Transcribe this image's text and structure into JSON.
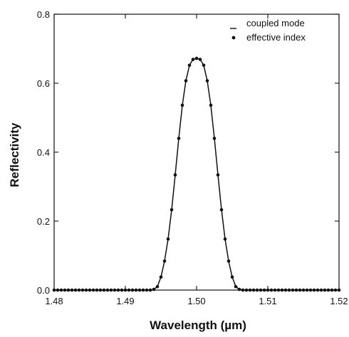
{
  "chart_data": {
    "type": "line",
    "xlabel": "Wavelength (µm)",
    "ylabel": "Reflectivity",
    "xlim": [
      1.48,
      1.52
    ],
    "ylim": [
      0.0,
      0.8
    ],
    "x_ticks": [
      1.48,
      1.49,
      1.5,
      1.51,
      1.52
    ],
    "x_tick_labels": [
      "1.48",
      "1.49",
      "1.50",
      "1.51",
      "1.52"
    ],
    "y_ticks": [
      0.0,
      0.2,
      0.4,
      0.6,
      0.8
    ],
    "y_tick_labels": [
      "0.0",
      "0.2",
      "0.4",
      "0.6",
      "0.8"
    ],
    "grid": false,
    "legend_position": "top-right",
    "series": [
      {
        "name": "coupled mode",
        "style": "line",
        "x": [
          1.48,
          1.4805,
          1.481,
          1.4815,
          1.482,
          1.4825,
          1.483,
          1.4835,
          1.484,
          1.4845,
          1.485,
          1.4855,
          1.486,
          1.4865,
          1.487,
          1.4875,
          1.488,
          1.4885,
          1.489,
          1.4895,
          1.49,
          1.4905,
          1.491,
          1.4915,
          1.492,
          1.4925,
          1.493,
          1.4935,
          1.494,
          1.4945,
          1.495,
          1.4955,
          1.496,
          1.4965,
          1.497,
          1.4975,
          1.498,
          1.4985,
          1.499,
          1.4995,
          1.5,
          1.5005,
          1.501,
          1.5015,
          1.502,
          1.5025,
          1.503,
          1.5035,
          1.504,
          1.5045,
          1.505,
          1.5055,
          1.506,
          1.5065,
          1.507,
          1.5075,
          1.508,
          1.5085,
          1.509,
          1.5095,
          1.51,
          1.5105,
          1.511,
          1.5115,
          1.512,
          1.5125,
          1.513,
          1.5135,
          1.514,
          1.5145,
          1.515,
          1.5155,
          1.516,
          1.5165,
          1.517,
          1.5175,
          1.518,
          1.5185,
          1.519,
          1.5195,
          1.52
        ],
        "y": [
          0,
          0,
          0,
          0,
          0,
          0,
          0,
          0,
          0,
          0,
          0,
          0,
          0,
          0,
          0,
          0,
          0,
          0,
          0,
          0,
          0,
          0,
          0,
          0,
          0,
          0,
          0,
          0,
          0.002,
          0.01,
          0.038,
          0.084,
          0.148,
          0.233,
          0.334,
          0.44,
          0.536,
          0.607,
          0.652,
          0.669,
          0.672,
          0.669,
          0.652,
          0.607,
          0.536,
          0.44,
          0.334,
          0.233,
          0.148,
          0.084,
          0.038,
          0.01,
          0.002,
          0,
          0,
          0,
          0,
          0,
          0,
          0,
          0,
          0,
          0,
          0,
          0,
          0,
          0,
          0,
          0,
          0,
          0,
          0,
          0,
          0,
          0,
          0,
          0,
          0,
          0,
          0,
          0
        ]
      },
      {
        "name": "effective index",
        "style": "markers",
        "x": [
          1.48,
          1.4805,
          1.481,
          1.4815,
          1.482,
          1.4825,
          1.483,
          1.4835,
          1.484,
          1.4845,
          1.485,
          1.4855,
          1.486,
          1.4865,
          1.487,
          1.4875,
          1.488,
          1.4885,
          1.489,
          1.4895,
          1.49,
          1.4905,
          1.491,
          1.4915,
          1.492,
          1.4925,
          1.493,
          1.4935,
          1.494,
          1.4945,
          1.495,
          1.4955,
          1.496,
          1.4965,
          1.497,
          1.4975,
          1.498,
          1.4985,
          1.499,
          1.4995,
          1.5,
          1.5005,
          1.501,
          1.5015,
          1.502,
          1.5025,
          1.503,
          1.5035,
          1.504,
          1.5045,
          1.505,
          1.5055,
          1.506,
          1.5065,
          1.507,
          1.5075,
          1.508,
          1.5085,
          1.509,
          1.5095,
          1.51,
          1.5105,
          1.511,
          1.5115,
          1.512,
          1.5125,
          1.513,
          1.5135,
          1.514,
          1.5145,
          1.515,
          1.5155,
          1.516,
          1.5165,
          1.517,
          1.5175,
          1.518,
          1.5185,
          1.519,
          1.5195,
          1.52
        ],
        "y": [
          0,
          0,
          0,
          0,
          0,
          0,
          0,
          0,
          0,
          0,
          0,
          0,
          0,
          0,
          0,
          0,
          0,
          0,
          0,
          0,
          0,
          0,
          0,
          0,
          0,
          0,
          0,
          0,
          0.002,
          0.01,
          0.038,
          0.084,
          0.148,
          0.233,
          0.334,
          0.44,
          0.536,
          0.607,
          0.652,
          0.669,
          0.672,
          0.669,
          0.652,
          0.607,
          0.536,
          0.44,
          0.334,
          0.233,
          0.148,
          0.084,
          0.038,
          0.01,
          0.002,
          0,
          0,
          0,
          0,
          0,
          0,
          0,
          0,
          0,
          0,
          0,
          0,
          0,
          0,
          0,
          0,
          0,
          0,
          0,
          0,
          0,
          0,
          0,
          0,
          0,
          0,
          0,
          0
        ]
      }
    ]
  }
}
